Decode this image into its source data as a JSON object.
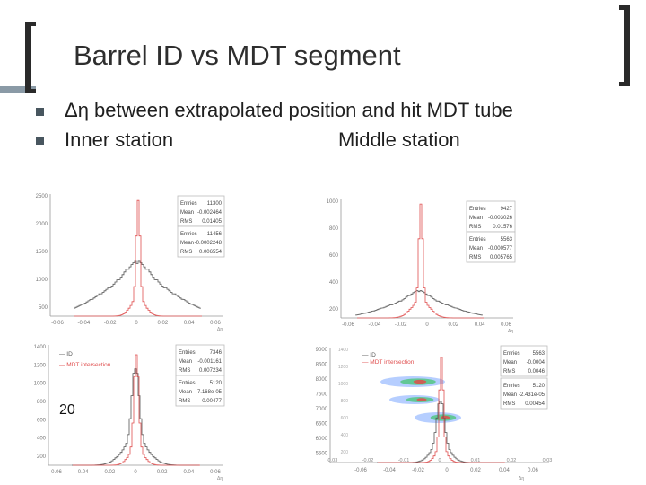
{
  "slide": {
    "title": "Barrel ID vs MDT segment",
    "bullets": [
      "Δη between extrapolated position and hit MDT tube",
      "Inner station"
    ],
    "middle_label": "Middle station",
    "page_number": "20"
  },
  "panels": {
    "tl": {
      "y_ticks": [
        "2500",
        "2000",
        "1500",
        "1000",
        "500"
      ],
      "x_ticks": [
        "-0.06",
        "-0.04",
        "-0.02",
        "0",
        "0.02",
        "0.04",
        "0.06"
      ],
      "x_unit": "Δη",
      "stats1": [
        [
          "Entries",
          "11300"
        ],
        [
          "Mean",
          "-0.002464"
        ],
        [
          "RMS",
          "0.01405"
        ]
      ],
      "stats2": [
        [
          "Entries",
          "11456"
        ],
        [
          "Mean",
          "-0.0002248"
        ],
        [
          "RMS",
          "0.006554"
        ]
      ]
    },
    "tr": {
      "y_ticks": [
        "1000",
        "800",
        "600",
        "400",
        "200"
      ],
      "x_ticks": [
        "-0.06",
        "-0.04",
        "-0.02",
        "0",
        "0.02",
        "0.04",
        "0.06"
      ],
      "x_unit": "Δη",
      "stats1": [
        [
          "Entries",
          "9427"
        ],
        [
          "Mean",
          "-0.003026"
        ],
        [
          "RMS",
          "0.01576"
        ]
      ],
      "stats2": [
        [
          "Entries",
          "5563"
        ],
        [
          "Mean",
          "-0.000577"
        ],
        [
          "RMS",
          "0.005765"
        ]
      ]
    },
    "bl": {
      "y_ticks": [
        "1400",
        "1200",
        "1000",
        "800",
        "600",
        "400",
        "200"
      ],
      "x_ticks": [
        "-0.06",
        "-0.04",
        "-0.02",
        "0",
        "0.02",
        "0.04",
        "0.06"
      ],
      "x_unit": "Δη",
      "legend": [
        "ID",
        "MDT intersection"
      ],
      "stats1": [
        [
          "Entries",
          "7346"
        ],
        [
          "Mean",
          "-0.001161"
        ],
        [
          "RMS",
          "0.007234"
        ]
      ],
      "stats2": [
        [
          "Entries",
          "5120"
        ],
        [
          "Mean",
          "7.168e-05"
        ],
        [
          "RMS",
          "0.00477"
        ]
      ]
    },
    "br": {
      "y_ticks": [
        "9000",
        "8500",
        "8000",
        "7500",
        "7000",
        "6500",
        "6000",
        "5500"
      ],
      "y_ticks_inner": [
        "1400",
        "1200",
        "1000",
        "800",
        "600",
        "400",
        "200"
      ],
      "x_ticks": [
        "-0.03",
        "-0.02",
        "-0.01",
        "0",
        "0.01",
        "0.02",
        "0.03"
      ],
      "x_ticks_inner": [
        "-0.06",
        "-0.04",
        "-0.02",
        "0",
        "0.02",
        "0.04",
        "0.06"
      ],
      "x_unit": "Δη",
      "legend": [
        "ID",
        "MDT intersection"
      ],
      "stats1": [
        [
          "Entries",
          "5563"
        ],
        [
          "Mean",
          "-0.0004"
        ],
        [
          "RMS",
          "0.0046"
        ]
      ],
      "stats2": [
        [
          "Entries",
          "5120"
        ],
        [
          "Mean",
          "-2.431e-05"
        ],
        [
          "RMS",
          "0.00454"
        ]
      ]
    }
  },
  "colors": {
    "id_hist": "#555555",
    "mdt_hist": "#e05050",
    "stat_text": "#444444"
  }
}
